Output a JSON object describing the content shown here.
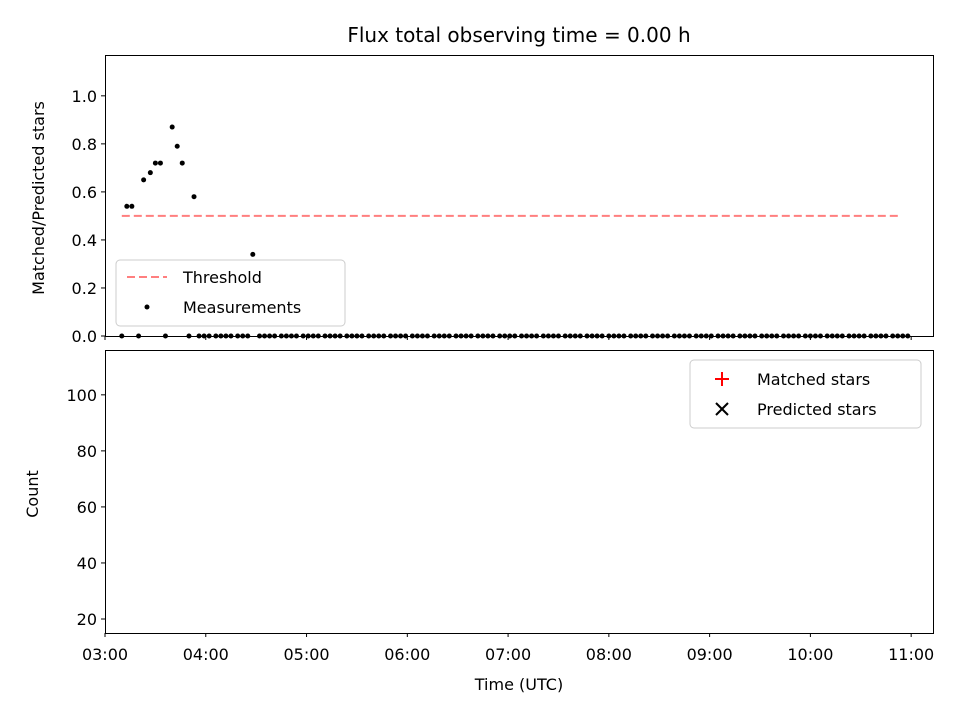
{
  "title": "Flux total observing time = 0.00 h",
  "colors": {
    "threshold": "#ff7f7f",
    "measurements": "#000000",
    "matched": "#ff0000",
    "predicted": "#000000"
  },
  "chart_data": [
    {
      "type": "scatter",
      "panel": "top",
      "ylabel": "Matched/Predicted stars",
      "xlabel": "",
      "x_unit": "hour_UTC",
      "xlim": [
        "03:00",
        "11:13"
      ],
      "ylim": [
        0,
        1.17
      ],
      "yticks": [
        0.0,
        0.2,
        0.4,
        0.6,
        0.8,
        1.0
      ],
      "ytick_labels": [
        "0.0",
        "0.2",
        "0.4",
        "0.6",
        "0.8",
        "1.0"
      ],
      "grid": false,
      "legend": {
        "position": "lower-left",
        "entries": [
          "Threshold",
          "Measurements"
        ]
      },
      "threshold": {
        "name": "Threshold",
        "value": 0.5,
        "x_start": "03:10",
        "x_end": "10:54",
        "style": "dashed"
      },
      "series": [
        {
          "name": "Measurements",
          "marker": "dot",
          "x": [
            "03:10",
            "03:13",
            "03:16",
            "03:20",
            "03:23",
            "03:27",
            "03:30",
            "03:33",
            "03:36",
            "03:40",
            "03:43",
            "03:46",
            "03:50",
            "03:53",
            "03:56",
            "03:59",
            "04:02",
            "04:06",
            "04:09",
            "04:12",
            "04:15",
            "04:19",
            "04:22",
            "04:25",
            "04:28",
            "04:32",
            "04:35",
            "04:38",
            "04:41",
            "04:45",
            "04:48",
            "04:51",
            "04:54",
            "04:58",
            "05:01",
            "05:04",
            "05:07",
            "05:11",
            "05:14",
            "05:17",
            "05:20",
            "05:24",
            "05:27",
            "05:30",
            "05:33",
            "05:37",
            "05:40",
            "05:43",
            "05:46",
            "05:50",
            "05:53",
            "05:56",
            "05:59",
            "06:03",
            "06:06",
            "06:09",
            "06:12",
            "06:16",
            "06:19",
            "06:22",
            "06:25",
            "06:29",
            "06:32",
            "06:35",
            "06:38",
            "06:42",
            "06:45",
            "06:48",
            "06:51",
            "06:55",
            "06:58",
            "07:01",
            "07:04",
            "07:08",
            "07:11",
            "07:14",
            "07:17",
            "07:21",
            "07:24",
            "07:27",
            "07:30",
            "07:34",
            "07:37",
            "07:40",
            "07:43",
            "07:47",
            "07:50",
            "07:53",
            "07:56",
            "08:00",
            "08:03",
            "08:06",
            "08:09",
            "08:13",
            "08:16",
            "08:19",
            "08:22",
            "08:26",
            "08:29",
            "08:32",
            "08:35",
            "08:39",
            "08:42",
            "08:45",
            "08:48",
            "08:52",
            "08:55",
            "08:58",
            "09:01",
            "09:05",
            "09:08",
            "09:11",
            "09:14",
            "09:18",
            "09:21",
            "09:24",
            "09:27",
            "09:31",
            "09:34",
            "09:37",
            "09:40",
            "09:44",
            "09:47",
            "09:50",
            "09:53",
            "09:57",
            "10:00",
            "10:03",
            "10:06",
            "10:10",
            "10:13",
            "10:16",
            "10:19",
            "10:23",
            "10:26",
            "10:29",
            "10:32",
            "10:36",
            "10:39",
            "10:42",
            "10:45",
            "10:49",
            "10:52",
            "10:55",
            "10:58"
          ],
          "y": [
            0.0,
            0.54,
            0.54,
            0.0,
            0.65,
            0.68,
            0.72,
            0.72,
            0.0,
            0.87,
            0.79,
            0.72,
            0.0,
            0.58,
            0.0,
            0.0,
            0.0,
            0.0,
            0.0,
            0.0,
            0.0,
            0.0,
            0.0,
            0.0,
            0.34,
            0.0,
            0.0,
            0.0,
            0.0,
            0.0,
            0.0,
            0.0,
            0.0,
            0.0,
            0.0,
            0.0,
            0.0,
            0.0,
            0.0,
            0.0,
            0.0,
            0.0,
            0.0,
            0.0,
            0.0,
            0.0,
            0.0,
            0.0,
            0.0,
            0.0,
            0.0,
            0.0,
            0.0,
            0.0,
            0.0,
            0.0,
            0.0,
            0.0,
            0.0,
            0.0,
            0.0,
            0.0,
            0.0,
            0.0,
            0.0,
            0.0,
            0.0,
            0.0,
            0.0,
            0.0,
            0.0,
            0.0,
            0.0,
            0.0,
            0.0,
            0.0,
            0.0,
            0.0,
            0.0,
            0.0,
            0.0,
            0.0,
            0.0,
            0.0,
            0.0,
            0.0,
            0.0,
            0.0,
            0.0,
            0.0,
            0.0,
            0.0,
            0.0,
            0.0,
            0.0,
            0.0,
            0.0,
            0.0,
            0.0,
            0.0,
            0.0,
            0.0,
            0.0,
            0.0,
            0.0,
            0.0,
            0.0,
            0.0,
            0.0,
            0.0,
            0.0,
            0.0,
            0.0,
            0.0,
            0.0,
            0.0,
            0.0,
            0.0,
            0.0,
            0.0,
            0.0,
            0.0,
            0.0,
            0.0,
            0.0,
            0.0,
            0.0,
            0.0,
            0.0,
            0.0,
            0.0,
            0.0,
            0.0,
            0.0,
            0.0,
            0.0,
            0.0,
            0.0,
            0.0,
            0.0,
            0.0,
            0.0,
            0.0,
            0.0,
            0.0
          ]
        }
      ]
    },
    {
      "type": "scatter",
      "panel": "bottom",
      "ylabel": "Count",
      "xlabel": "Time (UTC)",
      "x_unit": "hour_UTC",
      "xlim": [
        "03:00",
        "11:13"
      ],
      "xticks": [
        "03:00",
        "04:00",
        "05:00",
        "06:00",
        "07:00",
        "08:00",
        "09:00",
        "10:00",
        "11:00"
      ],
      "ylim": [
        15,
        116
      ],
      "yticks": [
        20,
        40,
        60,
        80,
        100
      ],
      "ytick_labels": [
        "20",
        "40",
        "60",
        "80",
        "100"
      ],
      "grid": false,
      "legend": {
        "position": "top-right",
        "entries": [
          "Matched stars",
          "Predicted stars"
        ]
      },
      "series": [
        {
          "name": "Matched stars",
          "marker": "plus",
          "x": [],
          "y": []
        },
        {
          "name": "Predicted stars",
          "marker": "x",
          "x": [],
          "y": []
        }
      ]
    }
  ]
}
